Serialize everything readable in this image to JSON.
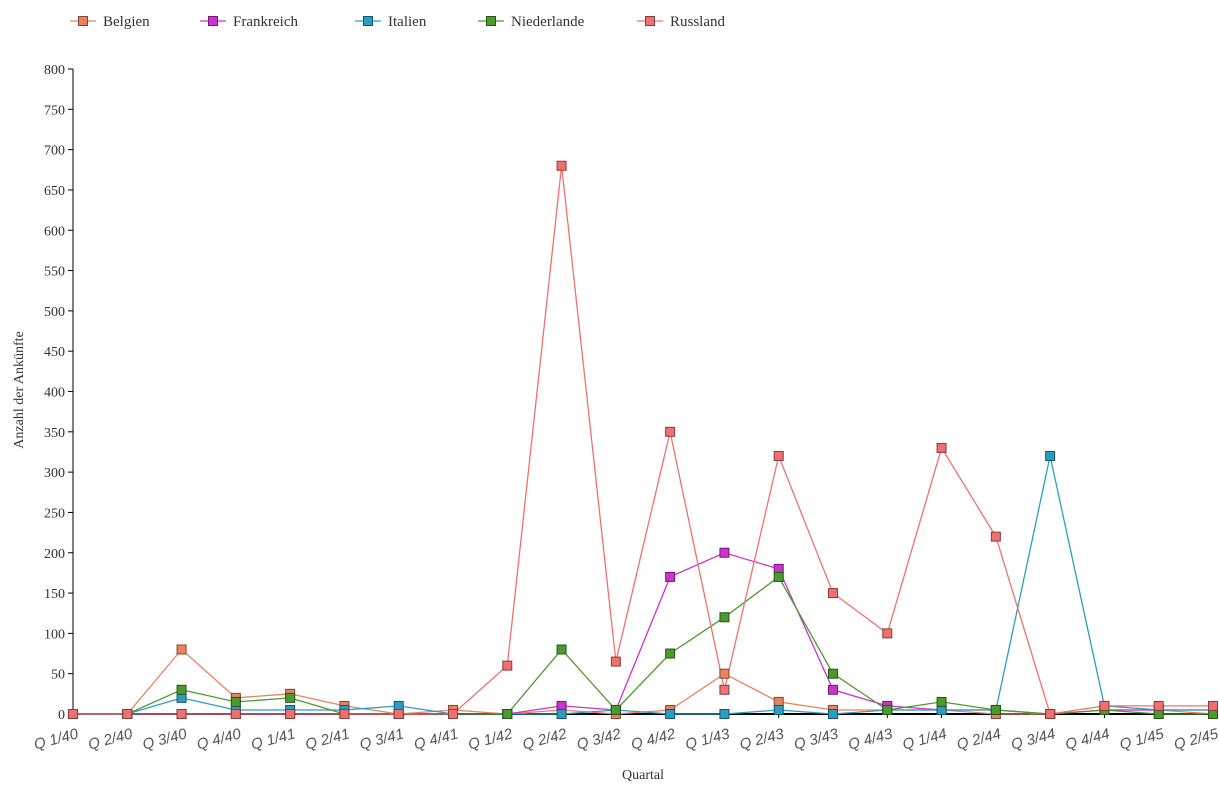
{
  "chart_data": {
    "type": "line",
    "title": "",
    "xlabel": "Quartal",
    "ylabel": "Anzahl der Ankünfte",
    "ylim": [
      0,
      800
    ],
    "yticks": [
      0,
      50,
      100,
      150,
      200,
      250,
      300,
      350,
      400,
      450,
      500,
      550,
      600,
      650,
      700,
      750,
      800
    ],
    "grid": false,
    "legend_position": "top",
    "categories": [
      "Q 1/40",
      "Q 2/40",
      "Q 3/40",
      "Q 4/40",
      "Q 1/41",
      "Q 2/41",
      "Q 3/41",
      "Q 4/41",
      "Q 1/42",
      "Q 2/42",
      "Q 3/42",
      "Q 4/42",
      "Q 1/43",
      "Q 2/43",
      "Q 3/43",
      "Q 4/43",
      "Q 1/44",
      "Q 2/44",
      "Q 3/44",
      "Q 4/44",
      "Q 1/45",
      "Q 2/45"
    ],
    "series": [
      {
        "name": "Belgien",
        "color": "#e8825f",
        "values": [
          0,
          0,
          80,
          20,
          25,
          10,
          0,
          5,
          0,
          5,
          0,
          5,
          50,
          15,
          5,
          5,
          5,
          0,
          0,
          5,
          5,
          0
        ]
      },
      {
        "name": "Frankreich",
        "color": "#cc33cc",
        "values": [
          0,
          0,
          0,
          0,
          0,
          0,
          0,
          0,
          0,
          10,
          5,
          170,
          200,
          180,
          30,
          10,
          5,
          5,
          0,
          5,
          5,
          5
        ]
      },
      {
        "name": "Italien",
        "color": "#2a9ec2",
        "values": [
          0,
          0,
          20,
          5,
          5,
          5,
          10,
          0,
          0,
          0,
          5,
          0,
          0,
          5,
          0,
          5,
          5,
          5,
          320,
          10,
          5,
          5
        ]
      },
      {
        "name": "Niederlande",
        "color": "#4b9a2e",
        "values": [
          0,
          0,
          30,
          15,
          20,
          0,
          0,
          0,
          0,
          80,
          5,
          75,
          120,
          170,
          50,
          5,
          15,
          5,
          0,
          5,
          0,
          0
        ]
      },
      {
        "name": "Russland",
        "color": "#f07070",
        "values": [
          0,
          0,
          0,
          0,
          0,
          0,
          0,
          0,
          60,
          680,
          65,
          350,
          30,
          320,
          150,
          100,
          330,
          220,
          0,
          10,
          10,
          10
        ]
      }
    ]
  }
}
